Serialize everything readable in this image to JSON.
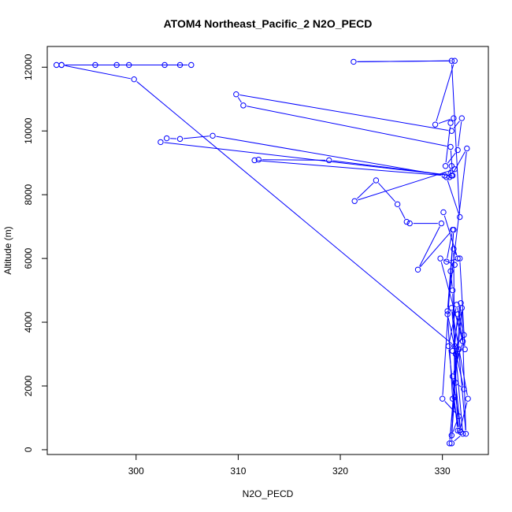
{
  "chart_data": {
    "type": "line",
    "title": "ATOM4 Northeast_Pacific_2 N2O_PECD",
    "xlabel": "N2O_PECD",
    "ylabel": "Altitude (m)",
    "xlim": [
      291.3,
      334.5
    ],
    "ylim": [
      -150,
      12650
    ],
    "x_ticks": [
      300,
      310,
      320,
      330
    ],
    "y_ticks": [
      0,
      2000,
      4000,
      6000,
      8000,
      10000,
      12000
    ],
    "x_tick_labels": [
      "300",
      "310",
      "320",
      "330"
    ],
    "y_tick_labels": [
      "0",
      "2000",
      "4000",
      "6000",
      "8000",
      "10000",
      "12000"
    ],
    "grid": false,
    "legend": "none",
    "series_color": "#0000ff",
    "series": [
      {
        "x": [
          292.2,
          292.7,
          296.0,
          298.1,
          299.3,
          302.8,
          304.3,
          305.4,
          292.7,
          299.8,
          331.2,
          331.5,
          332.0,
          331.0,
          331.8,
          331.3,
          332.1,
          330.5,
          331.0,
          331.7,
          332.5,
          330.9,
          332.0,
          330.9,
          331.3,
          331.6,
          332.3,
          331.9,
          330.7,
          331.8,
          331.0,
          332.1,
          331.4,
          330.6,
          331.5,
          331.0,
          330.8,
          331.2,
          329.8,
          332.2,
          331.7,
          330.4,
          331.0,
          327.6,
          329.9,
          326.8,
          326.5,
          325.6,
          323.5,
          321.4,
          331.2,
          330.7,
          330.9,
          330.4,
          331.7,
          330.9,
          321.3,
          331.2,
          329.3,
          331.1,
          330.8,
          330.3,
          331.5,
          331.9,
          330.9,
          309.8,
          310.5,
          330.8,
          331.0,
          318.9,
          312.0,
          311.6,
          330.2,
          307.5,
          304.3,
          303.0,
          302.4,
          330.9,
          332.4,
          330.5,
          331.1,
          330.0,
          331.6,
          330.9,
          331.2,
          331.1,
          331.5,
          330.1
        ],
        "y": [
          12070,
          12070,
          12070,
          12070,
          12070,
          12070,
          12070,
          12070,
          12070,
          11620,
          3250,
          4250,
          3400,
          2300,
          550,
          2100,
          1900,
          4250,
          1600,
          600,
          1600,
          4450,
          500,
          200,
          3000,
          3150,
          500,
          4450,
          200,
          4600,
          3100,
          3600,
          4550,
          3250,
          600,
          5000,
          5600,
          5800,
          6000,
          3150,
          6000,
          5900,
          6900,
          5650,
          7100,
          7100,
          7150,
          7700,
          8450,
          7800,
          8800,
          8550,
          8900,
          8550,
          7300,
          12200,
          12170,
          12200,
          10200,
          10400,
          10250,
          8900,
          9400,
          10400,
          10000,
          11150,
          10800,
          9500,
          8600,
          9080,
          9100,
          9080,
          8600,
          9850,
          9750,
          9770,
          9650,
          8600,
          9450,
          4350,
          6900,
          1600,
          1050,
          450,
          1650,
          6300,
          6000,
          7450
        ]
      }
    ]
  }
}
